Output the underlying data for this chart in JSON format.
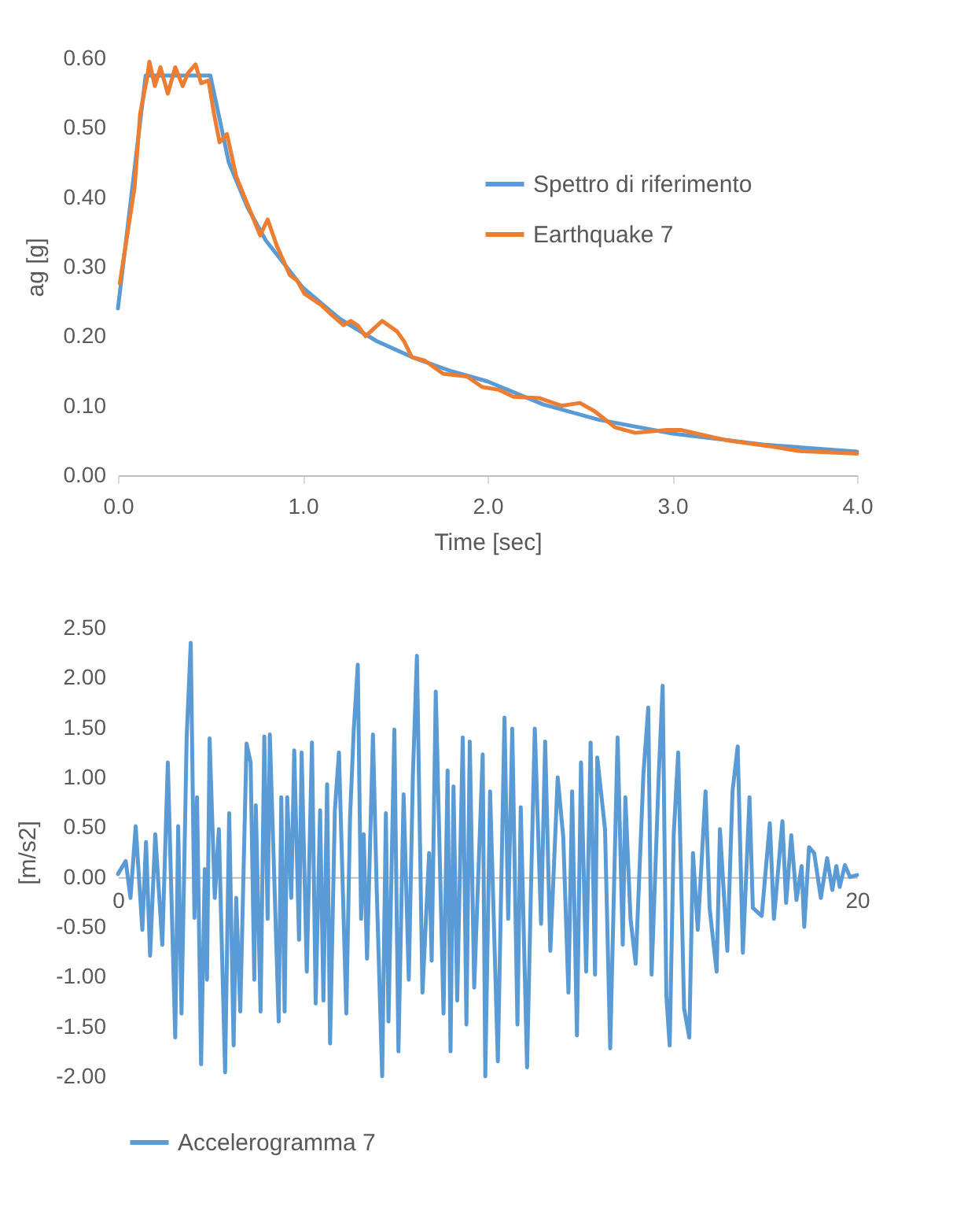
{
  "chart_data": [
    {
      "type": "line",
      "xlabel": "Time [sec]",
      "ylabel": "ag [g]",
      "legend": "top right",
      "grid": false,
      "xlim": [
        0,
        4
      ],
      "xticks": [
        {
          "value": 0,
          "label": "0.0"
        },
        {
          "value": 1,
          "label": "1.0"
        },
        {
          "value": 2,
          "label": "2.0"
        },
        {
          "value": 3,
          "label": "3.0"
        },
        {
          "value": 4,
          "label": "4.0"
        }
      ],
      "ylim": [
        0,
        0.6
      ],
      "yticks": [
        {
          "value": 0,
          "label": "0.00"
        },
        {
          "value": 0.1,
          "label": "0.10"
        },
        {
          "value": 0.2,
          "label": "0.20"
        },
        {
          "value": 0.3,
          "label": "0.30"
        },
        {
          "value": 0.4,
          "label": "0.40"
        },
        {
          "value": 0.5,
          "label": "0.50"
        },
        {
          "value": 0.6,
          "label": "0.60"
        }
      ],
      "series": [
        {
          "name": "Spettro di riferimento",
          "color": "#5b9bd5",
          "x": [
            0,
            0.15,
            0.5,
            0.6,
            0.7,
            0.8,
            1.0,
            1.2,
            1.4,
            1.6,
            1.8,
            2.0,
            2.3,
            2.6,
            3.0,
            3.5,
            4.0
          ],
          "values": [
            0.24,
            0.575,
            0.575,
            0.45,
            0.386,
            0.338,
            0.27,
            0.225,
            0.193,
            0.169,
            0.15,
            0.135,
            0.102,
            0.08,
            0.06,
            0.044,
            0.034
          ]
        },
        {
          "name": "Earthquake 7",
          "color": "#ed7d31",
          "x": [
            0.01,
            0.05,
            0.09,
            0.12,
            0.16,
            0.17,
            0.2,
            0.23,
            0.27,
            0.31,
            0.35,
            0.38,
            0.42,
            0.45,
            0.49,
            0.52,
            0.55,
            0.59,
            0.64,
            0.71,
            0.77,
            0.81,
            0.86,
            0.93,
            0.97,
            1.01,
            1.1,
            1.16,
            1.22,
            1.26,
            1.3,
            1.34,
            1.43,
            1.51,
            1.55,
            1.59,
            1.66,
            1.76,
            1.89,
            1.97,
            2.06,
            2.14,
            2.28,
            2.4,
            2.5,
            2.58,
            2.69,
            2.8,
            2.97,
            3.05,
            3.13,
            3.3,
            3.52,
            3.68,
            4.0
          ],
          "values": [
            0.276,
            0.345,
            0.414,
            0.52,
            0.575,
            0.595,
            0.56,
            0.587,
            0.549,
            0.587,
            0.56,
            0.579,
            0.591,
            0.564,
            0.568,
            0.52,
            0.479,
            0.491,
            0.43,
            0.384,
            0.345,
            0.368,
            0.33,
            0.288,
            0.28,
            0.261,
            0.245,
            0.23,
            0.216,
            0.222,
            0.215,
            0.2,
            0.222,
            0.207,
            0.192,
            0.17,
            0.165,
            0.146,
            0.142,
            0.127,
            0.123,
            0.113,
            0.111,
            0.1,
            0.104,
            0.092,
            0.069,
            0.061,
            0.065,
            0.065,
            0.06,
            0.05,
            0.042,
            0.035,
            0.031
          ]
        }
      ]
    },
    {
      "type": "line",
      "ylabel": "[m/s2]",
      "legend": "bottom",
      "grid": false,
      "xlim": [
        0,
        20
      ],
      "xticks": [
        0,
        20
      ],
      "ylim": [
        -2,
        2.5
      ],
      "yticks": [
        {
          "value": -2,
          "label": "-2.00"
        },
        {
          "value": -1.5,
          "label": "-1.50"
        },
        {
          "value": -1,
          "label": "-1.00"
        },
        {
          "value": -0.5,
          "label": "-0.50"
        },
        {
          "value": 0,
          "label": "0.00"
        },
        {
          "value": 0.5,
          "label": "0.50"
        },
        {
          "value": 1,
          "label": "1.00"
        },
        {
          "value": 1.5,
          "label": "1.50"
        },
        {
          "value": 2,
          "label": "2.00"
        },
        {
          "value": 2.5,
          "label": "2.50"
        }
      ],
      "series": [
        {
          "name": "Accelerogramma 7",
          "color": "#5b9bd5",
          "x": [
            0,
            0.21,
            0.34,
            0.48,
            0.66,
            0.76,
            0.87,
            1.01,
            1.2,
            1.35,
            1.55,
            1.63,
            1.72,
            1.86,
            1.97,
            2.07,
            2.14,
            2.25,
            2.35,
            2.41,
            2.48,
            2.62,
            2.73,
            2.9,
            3.01,
            3.13,
            3.2,
            3.31,
            3.48,
            3.59,
            3.69,
            3.73,
            3.86,
            3.96,
            4.05,
            4.11,
            4.35,
            4.42,
            4.51,
            4.58,
            4.69,
            4.77,
            4.9,
            4.97,
            5.11,
            5.25,
            5.35,
            5.47,
            5.56,
            5.66,
            5.74,
            5.87,
            5.98,
            6.18,
            6.28,
            6.38,
            6.49,
            6.58,
            6.65,
            6.74,
            6.9,
            7.0,
            7.15,
            7.25,
            7.32,
            7.48,
            7.59,
            7.73,
            7.87,
            7.98,
            8.09,
            8.24,
            8.42,
            8.49,
            8.6,
            8.81,
            8.92,
            9.0,
            9.08,
            9.18,
            9.33,
            9.43,
            9.52,
            9.64,
            9.87,
            9.94,
            10.07,
            10.28,
            10.46,
            10.56,
            10.67,
            10.81,
            10.9,
            11.07,
            11.18,
            11.28,
            11.45,
            11.56,
            11.7,
            11.9,
            12.05,
            12.19,
            12.29,
            12.42,
            12.53,
            12.67,
            12.79,
            12.91,
            12.97,
            13.18,
            13.32,
            13.52,
            13.66,
            13.73,
            13.87,
            14.01,
            14.22,
            14.35,
            14.44,
            14.63,
            14.74,
            14.84,
            14.93,
            15.04,
            15.16,
            15.32,
            15.46,
            15.56,
            15.69,
            15.9,
            16.01,
            16.2,
            16.29,
            16.49,
            16.63,
            16.77,
            16.91,
            17.09,
            17.18,
            17.42,
            17.64,
            17.75,
            17.98,
            18.08,
            18.22,
            18.36,
            18.5,
            18.57,
            18.7,
            18.84,
            19.02,
            19.19,
            19.33,
            19.44,
            19.53,
            19.67,
            19.81,
            20.0
          ],
          "values": [
            0.03,
            0.16,
            -0.21,
            0.51,
            -0.53,
            0.35,
            -0.79,
            0.43,
            -0.68,
            1.15,
            -1.61,
            0.51,
            -1.37,
            1.41,
            2.35,
            -0.41,
            0.8,
            -1.88,
            0.08,
            -1.03,
            1.39,
            -0.21,
            0.48,
            -1.96,
            0.64,
            -1.69,
            -0.21,
            -1.35,
            1.34,
            1.15,
            -1.03,
            0.72,
            -1.35,
            1.41,
            -0.42,
            1.43,
            -1.45,
            0.8,
            -1.35,
            0.8,
            -0.21,
            1.27,
            -0.63,
            1.25,
            -0.95,
            1.35,
            -1.27,
            0.67,
            -1.24,
            0.93,
            -1.67,
            0.67,
            1.25,
            -1.37,
            0.59,
            1.47,
            2.13,
            -0.42,
            0.43,
            -0.82,
            1.43,
            -0.1,
            -2.0,
            0.64,
            -1.45,
            1.48,
            -1.75,
            0.83,
            -1.03,
            1.01,
            2.22,
            -1.16,
            0.24,
            -0.84,
            1.86,
            -1.37,
            1.07,
            -1.75,
            0.91,
            -1.24,
            1.4,
            -1.48,
            1.36,
            -1.11,
            1.23,
            -2.0,
            0.86,
            -1.85,
            1.6,
            -0.42,
            1.49,
            -1.48,
            0.7,
            -1.91,
            -0.05,
            1.49,
            -0.47,
            1.36,
            -0.74,
            1.0,
            0.4,
            -1.16,
            0.86,
            -1.59,
            1.15,
            -0.95,
            1.35,
            -0.98,
            1.2,
            0.48,
            -1.72,
            1.4,
            -0.68,
            0.8,
            -0.42,
            -0.87,
            1.04,
            1.7,
            -0.98,
            0.99,
            1.92,
            -1.19,
            -1.69,
            0.43,
            1.25,
            -1.32,
            -1.61,
            0.24,
            -0.53,
            0.86,
            -0.31,
            -0.95,
            0.48,
            -0.74,
            0.86,
            1.31,
            -0.76,
            0.8,
            -0.31,
            -0.39,
            0.54,
            -0.42,
            0.56,
            -0.26,
            0.42,
            -0.23,
            0.11,
            -0.5,
            0.3,
            0.24,
            -0.21,
            0.19,
            -0.13,
            0.11,
            -0.1,
            0.12,
            0.0,
            0.02
          ]
        }
      ]
    }
  ]
}
